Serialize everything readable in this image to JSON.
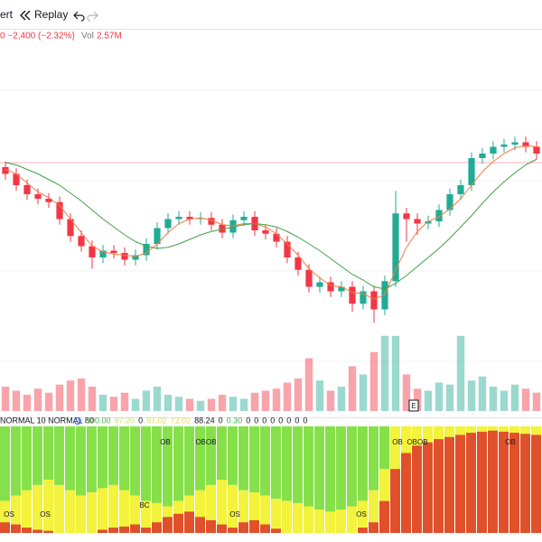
{
  "toolbar": {
    "alert": "ert",
    "replay": "Replay"
  },
  "legend": {
    "change": "0 −2,400 (−2.32%)",
    "vol_label": "Vol",
    "vol_value": "2.57M"
  },
  "chart_data": {
    "type": "candlestick",
    "ylim": [
      90,
      110
    ],
    "up_color": "#22ab94",
    "down_color": "#f23645",
    "level": 106,
    "level_color": "#f7b0b8",
    "candles": [
      [
        105.6,
        106.1,
        104.5,
        105.0
      ],
      [
        105.0,
        105.5,
        103.5,
        104.0
      ],
      [
        104.0,
        104.5,
        102.7,
        103.2
      ],
      [
        103.2,
        103.7,
        102.3,
        102.8
      ],
      [
        102.8,
        103.3,
        102.0,
        102.5
      ],
      [
        102.5,
        103.0,
        100.5,
        101.0
      ],
      [
        101.0,
        101.5,
        99.0,
        99.5
      ],
      [
        99.5,
        100.0,
        98.1,
        98.6
      ],
      [
        98.6,
        99.1,
        96.6,
        97.6
      ],
      [
        97.6,
        98.7,
        97.1,
        98.2
      ],
      [
        98.2,
        98.7,
        97.5,
        98.0
      ],
      [
        98.0,
        98.5,
        96.9,
        97.4
      ],
      [
        97.4,
        98.3,
        96.9,
        97.8
      ],
      [
        97.8,
        99.3,
        97.3,
        98.8
      ],
      [
        98.8,
        100.7,
        98.3,
        100.2
      ],
      [
        100.2,
        101.5,
        99.7,
        101.0
      ],
      [
        101.0,
        101.7,
        100.5,
        101.2
      ],
      [
        101.2,
        101.7,
        100.5,
        101.0
      ],
      [
        101.0,
        101.6,
        100.5,
        101.1
      ],
      [
        101.1,
        101.6,
        100.0,
        100.5
      ],
      [
        100.5,
        101.0,
        99.3,
        99.8
      ],
      [
        99.8,
        101.4,
        99.3,
        100.9
      ],
      [
        100.9,
        101.7,
        100.4,
        101.2
      ],
      [
        101.2,
        101.7,
        99.5,
        100.0
      ],
      [
        100.0,
        100.5,
        99.2,
        99.7
      ],
      [
        99.7,
        100.2,
        98.5,
        99.0
      ],
      [
        99.0,
        99.5,
        97.1,
        97.6
      ],
      [
        97.6,
        98.1,
        96.0,
        96.5
      ],
      [
        96.5,
        97.0,
        94.5,
        95.0
      ],
      [
        95.0,
        95.9,
        94.5,
        95.4
      ],
      [
        95.4,
        95.9,
        94.1,
        94.6
      ],
      [
        94.6,
        95.5,
        94.1,
        95.0
      ],
      [
        95.0,
        95.5,
        92.8,
        93.5
      ],
      [
        93.5,
        95.1,
        93.0,
        94.6
      ],
      [
        94.6,
        95.1,
        91.8,
        93.0
      ],
      [
        93.0,
        96.0,
        92.5,
        95.5
      ],
      [
        95.5,
        103.5,
        95.0,
        101.5
      ],
      [
        101.5,
        102.0,
        99.0,
        101.0
      ],
      [
        101.0,
        101.5,
        99.6,
        100.6
      ],
      [
        100.6,
        101.3,
        100.1,
        100.8
      ],
      [
        100.8,
        102.3,
        100.3,
        101.8
      ],
      [
        101.8,
        103.7,
        101.3,
        103.2
      ],
      [
        103.2,
        104.5,
        102.7,
        104.0
      ],
      [
        104.0,
        106.9,
        103.5,
        106.4
      ],
      [
        106.4,
        107.3,
        105.9,
        106.8
      ],
      [
        106.8,
        107.9,
        106.3,
        107.4
      ],
      [
        107.4,
        108.1,
        106.9,
        107.6
      ],
      [
        107.6,
        108.3,
        107.1,
        107.8
      ],
      [
        107.8,
        108.3,
        106.9,
        107.4
      ],
      [
        107.4,
        107.9,
        106.3,
        106.8
      ]
    ],
    "series": [
      {
        "color": "#f57c45",
        "values": [
          105.4,
          105.0,
          104.2,
          103.4,
          102.9,
          102.2,
          101.0,
          99.8,
          98.6,
          98.1,
          97.9,
          97.8,
          97.7,
          98.0,
          98.8,
          99.8,
          100.6,
          101.0,
          101.1,
          100.9,
          100.5,
          100.4,
          100.6,
          100.6,
          100.3,
          99.7,
          98.8,
          97.8,
          96.6,
          95.8,
          95.1,
          95.0,
          94.5,
          94.4,
          93.9,
          94.3,
          96.5,
          98.5,
          99.9,
          100.8,
          101.2,
          101.9,
          102.8,
          104.0,
          105.2,
          106.1,
          106.8,
          107.3,
          107.5,
          107.4
        ]
      },
      {
        "color": "#43a047",
        "values": [
          106.0,
          105.8,
          105.4,
          105.0,
          104.5,
          104.0,
          103.3,
          102.6,
          101.8,
          101.0,
          100.3,
          99.6,
          99.0,
          98.6,
          98.4,
          98.5,
          98.8,
          99.2,
          99.6,
          99.9,
          100.1,
          100.3,
          100.5,
          100.6,
          100.5,
          100.3,
          99.9,
          99.4,
          98.8,
          98.2,
          97.5,
          96.8,
          96.1,
          95.6,
          95.0,
          94.8,
          95.3,
          96.0,
          96.8,
          97.6,
          98.4,
          99.3,
          100.3,
          101.3,
          102.4,
          103.4,
          104.3,
          105.1,
          105.8,
          106.3
        ]
      }
    ],
    "volume_lim": [
      0,
      4
    ],
    "volume": [
      1.2,
      1.0,
      0.8,
      1.1,
      0.9,
      1.3,
      1.5,
      1.6,
      1.2,
      0.8,
      0.7,
      0.9,
      0.6,
      1.0,
      1.2,
      0.8,
      0.7,
      0.6,
      0.5,
      0.6,
      0.8,
      0.7,
      0.6,
      0.9,
      1.0,
      1.1,
      1.4,
      1.6,
      2.6,
      1.5,
      1.0,
      1.2,
      2.2,
      1.8,
      2.9,
      3.7,
      3.7,
      1.8,
      1.1,
      1.0,
      1.4,
      1.3,
      3.7,
      1.5,
      1.7,
      1.2,
      1.0,
      1.3,
      1.1,
      0.9
    ],
    "event": "E"
  },
  "indicator": {
    "name": "NORMAL 10 NORMAL 80",
    "readouts": [
      {
        "text": "100.00",
        "color": "#4caf50"
      },
      {
        "text": "97.20",
        "color": "#c6e86b"
      },
      {
        "text": "0",
        "color": "#131722"
      },
      {
        "text": "97.02",
        "color": "#e8d84a"
      },
      {
        "text": "72.02",
        "color": "#e8d84a"
      },
      {
        "text": "88.24",
        "color": "#131722"
      },
      {
        "text": "0",
        "color": "#131722"
      },
      {
        "text": "0.30",
        "color": "#4caf50"
      },
      {
        "text": "0",
        "color": "#131722"
      },
      {
        "text": "0",
        "color": "#131722"
      },
      {
        "text": "0",
        "color": "#131722"
      },
      {
        "text": "0",
        "color": "#131722"
      },
      {
        "text": "0",
        "color": "#131722"
      },
      {
        "text": "0",
        "color": "#131722"
      },
      {
        "text": "0",
        "color": "#131722"
      },
      {
        "text": "0",
        "color": "#131722"
      }
    ],
    "ylim": [
      0,
      100
    ],
    "green": "#86e04a",
    "yellow": "#f3f23c",
    "red": "#e0502a",
    "band": [
      30,
      35,
      40,
      45,
      50,
      45,
      40,
      35,
      38,
      42,
      45,
      40,
      35,
      30,
      28,
      25,
      30,
      35,
      40,
      45,
      50,
      45,
      40,
      38,
      35,
      32,
      30,
      28,
      25,
      22,
      20,
      22,
      25,
      30,
      40,
      60,
      100,
      100,
      100,
      100,
      100,
      100,
      100,
      100,
      100,
      100,
      100,
      100,
      100,
      100
    ],
    "osc": [
      10,
      8,
      5,
      3,
      2,
      0,
      0,
      0,
      0,
      3,
      5,
      6,
      8,
      5,
      10,
      15,
      18,
      20,
      15,
      12,
      8,
      5,
      10,
      12,
      8,
      4,
      0,
      0,
      0,
      0,
      0,
      0,
      0,
      5,
      10,
      30,
      60,
      75,
      82,
      85,
      88,
      90,
      92,
      94,
      95,
      96,
      95,
      94,
      93,
      92
    ],
    "labels": [
      "OS",
      "OS",
      "BC",
      "OS",
      "OS",
      "OB",
      "OBOB",
      "OB",
      "OBOB",
      "OB"
    ]
  }
}
